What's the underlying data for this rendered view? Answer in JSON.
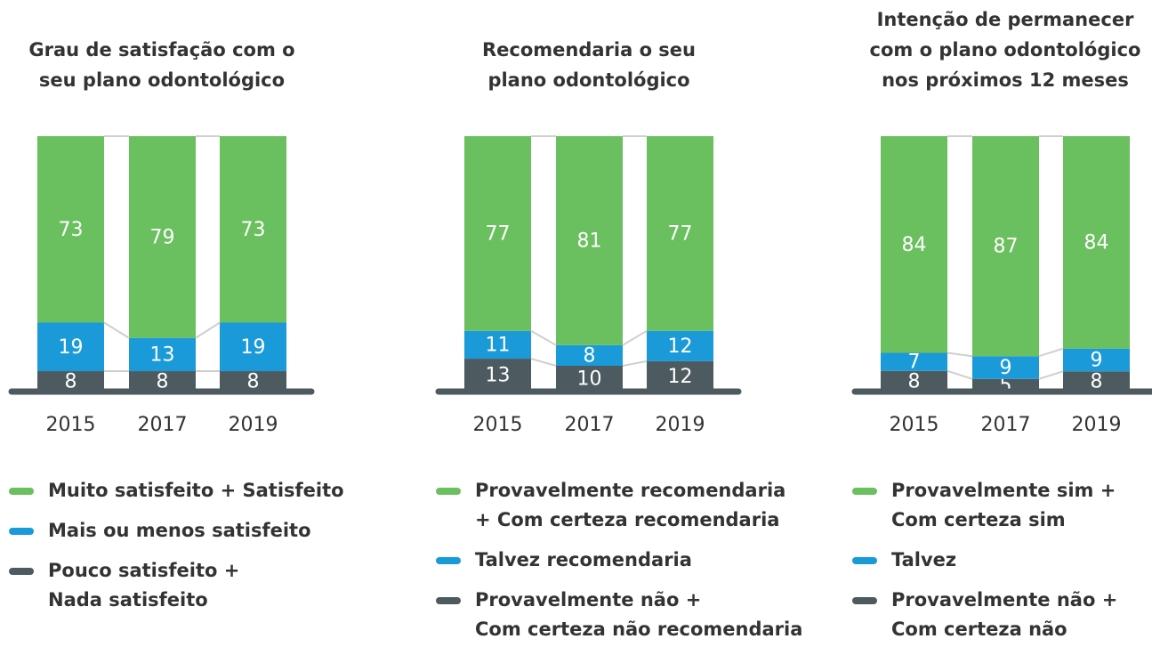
{
  "chart_data": [
    {
      "type": "bar",
      "stacked": true,
      "title": "Grau de satisfação com o\nseu plano odontológico",
      "categories": [
        "2015",
        "2017",
        "2019"
      ],
      "series": [
        {
          "name": "Pouco satisfeito +\nNada satisfeito",
          "color": "#4d5a5f",
          "values": [
            8,
            8,
            8
          ]
        },
        {
          "name": "Mais ou menos satisfeito",
          "color": "#1a9ad9",
          "values": [
            19,
            13,
            19
          ]
        },
        {
          "name": "Muito satisfeito + Satisfeito",
          "color": "#6abf5e",
          "values": [
            73,
            79,
            73
          ]
        }
      ]
    },
    {
      "type": "bar",
      "stacked": true,
      "title": "Recomendaria o seu\nplano odontológico",
      "categories": [
        "2015",
        "2017",
        "2019"
      ],
      "series": [
        {
          "name": "Provavelmente não +\nCom certeza não recomendaria",
          "color": "#4d5a5f",
          "values": [
            13,
            10,
            12
          ]
        },
        {
          "name": "Talvez recomendaria",
          "color": "#1a9ad9",
          "values": [
            11,
            8,
            12
          ]
        },
        {
          "name": "Provavelmente recomendaria\n+ Com certeza recomendaria",
          "color": "#6abf5e",
          "values": [
            77,
            81,
            77
          ]
        }
      ]
    },
    {
      "type": "bar",
      "stacked": true,
      "title": "Intenção de permanecer\ncom o plano odontológico\nnos próximos 12 meses",
      "categories": [
        "2015",
        "2017",
        "2019"
      ],
      "series": [
        {
          "name": "Provavelmente não +\nCom certeza não",
          "color": "#4d5a5f",
          "values": [
            8,
            5,
            8
          ]
        },
        {
          "name": "Talvez",
          "color": "#1a9ad9",
          "values": [
            7,
            9,
            9
          ]
        },
        {
          "name": "Provavelmente sim +\nCom certeza sim",
          "color": "#6abf5e",
          "values": [
            84,
            87,
            84
          ]
        }
      ]
    }
  ]
}
